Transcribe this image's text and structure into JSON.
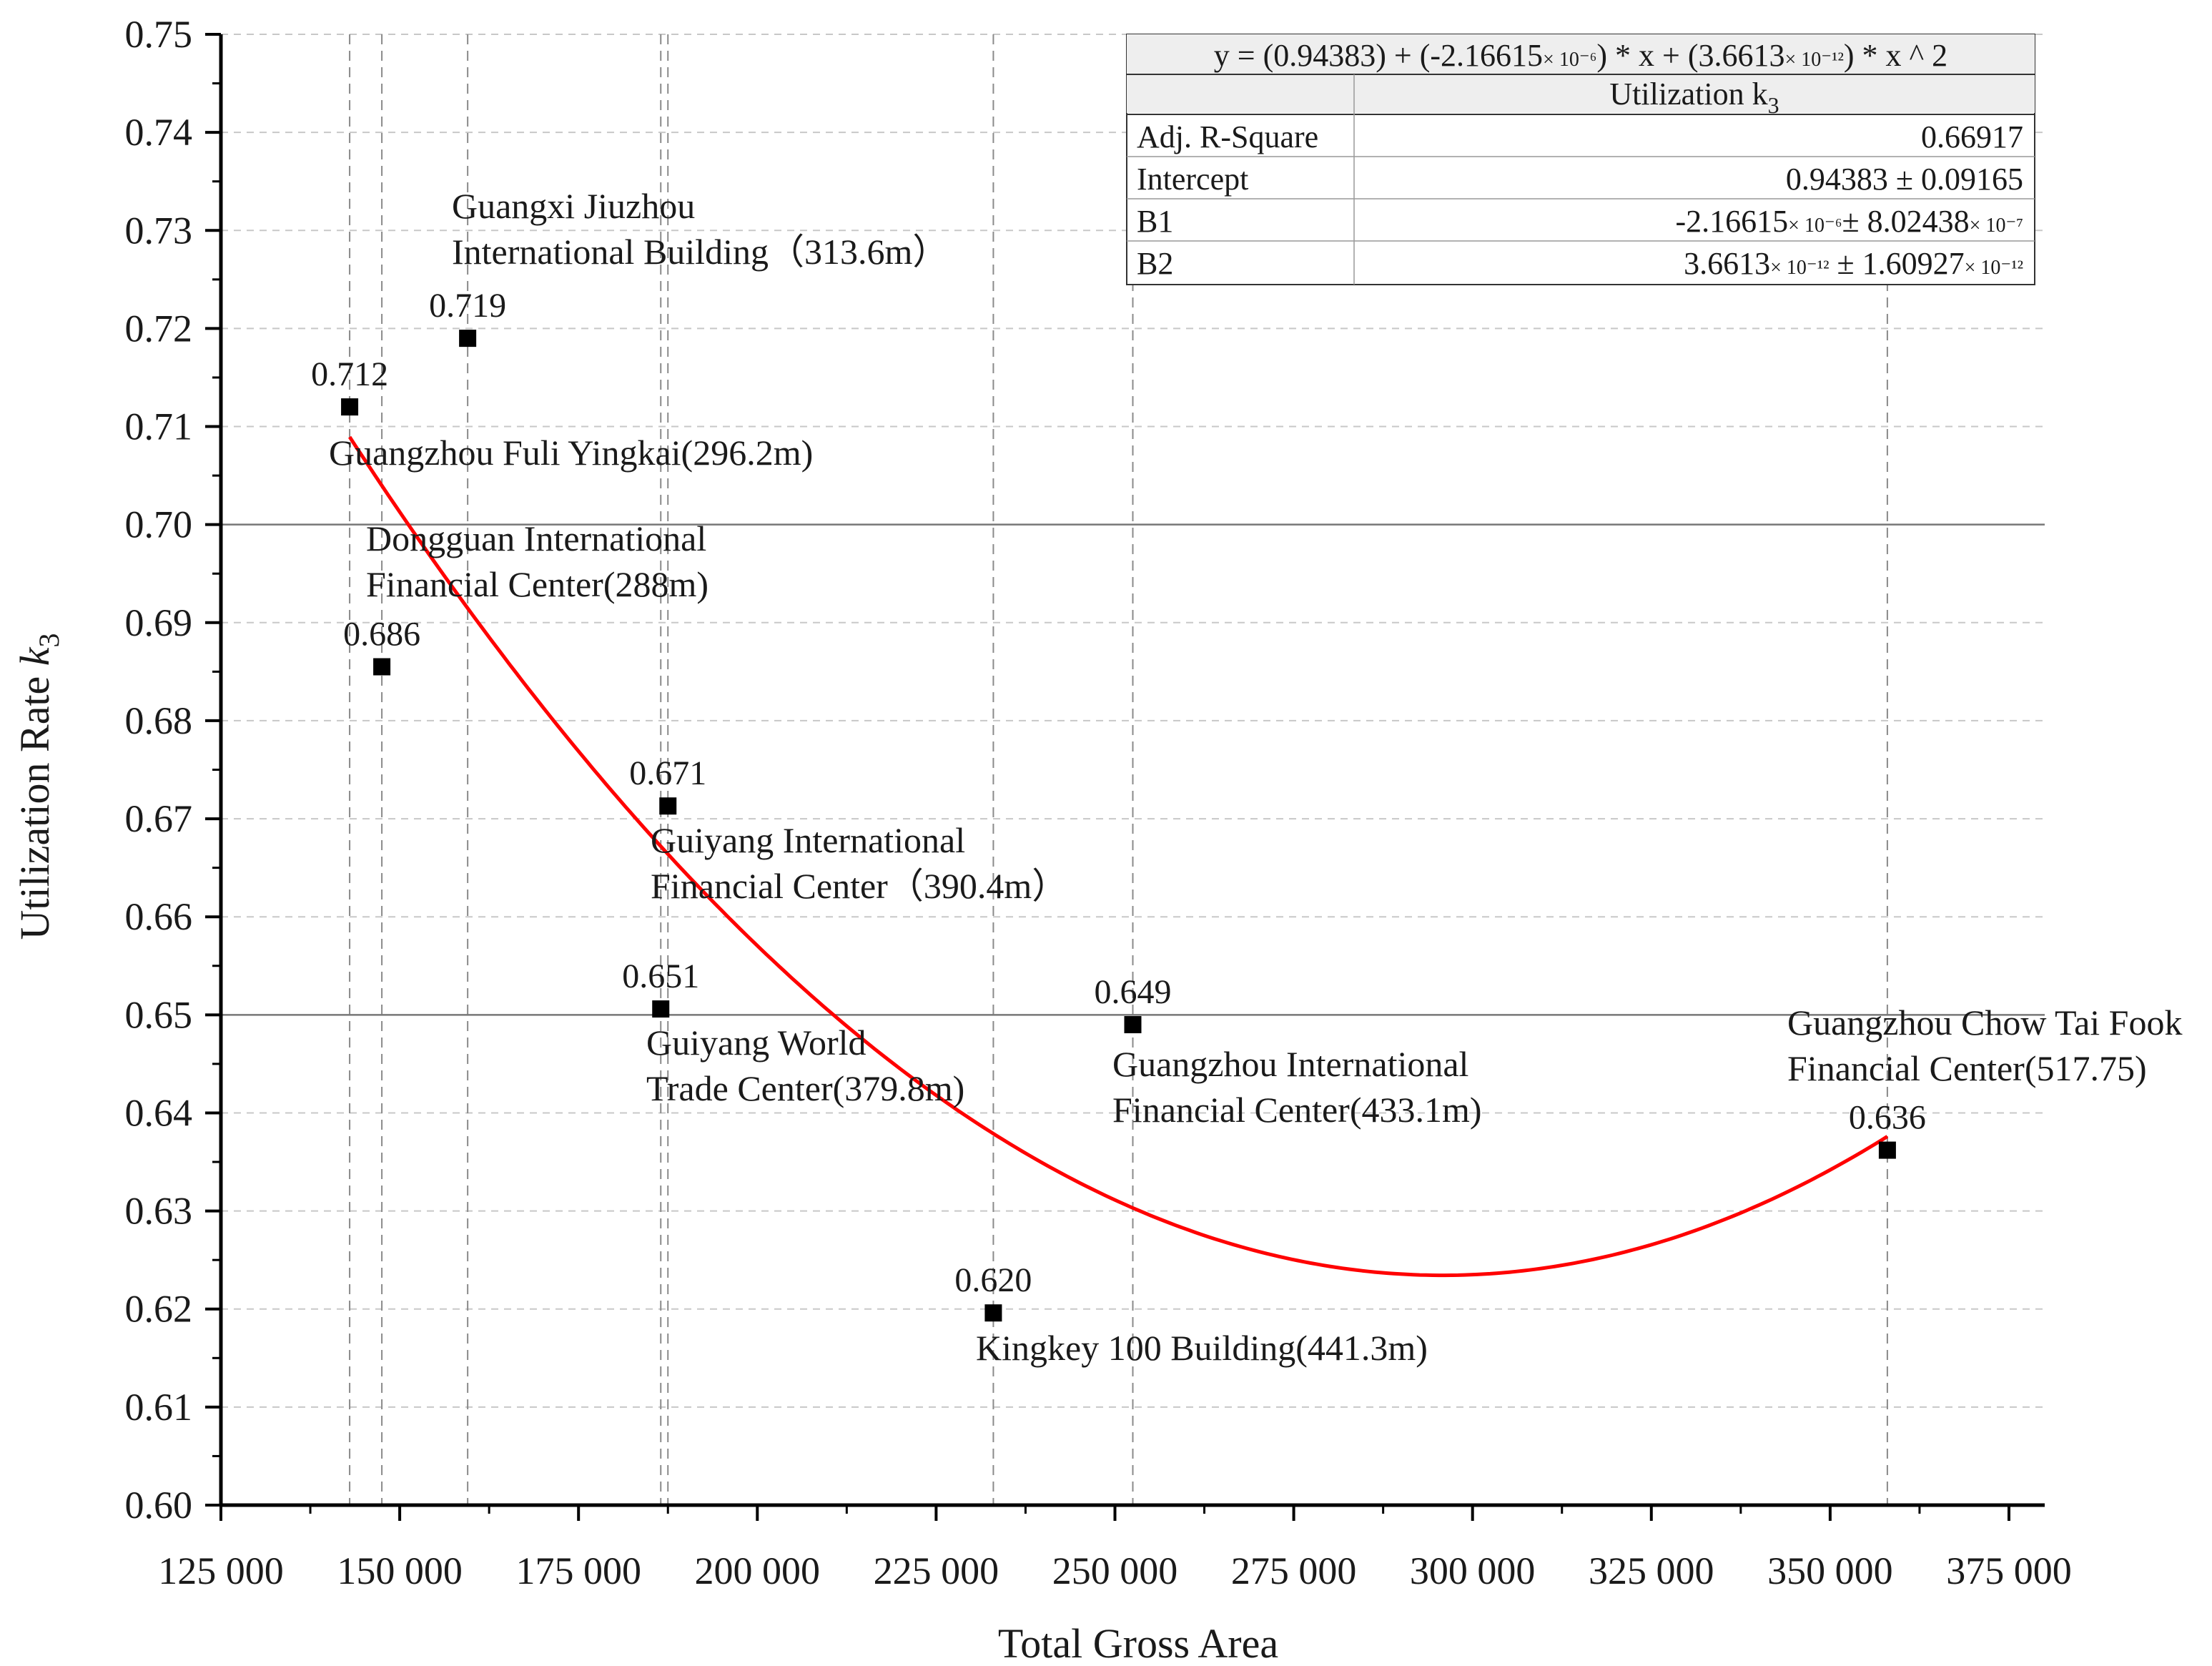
{
  "chart_data": {
    "type": "scatter",
    "xlabel": "Total Gross Area",
    "ylabel": "Utilization Rate ",
    "ylabel_symbol": "k",
    "ylabel_sub": "3",
    "xlim": [
      125000,
      380000
    ],
    "ylim": [
      0.6,
      0.75
    ],
    "x_ticks": [
      125000,
      150000,
      175000,
      200000,
      225000,
      250000,
      275000,
      300000,
      325000,
      350000,
      375000
    ],
    "x_tick_labels": [
      "125 000",
      "150 000",
      "175 000",
      "200 000",
      "225 000",
      "250 000",
      "275 000",
      "300 000",
      "325 000",
      "350 000",
      "375 000"
    ],
    "y_ticks": [
      0.6,
      0.61,
      0.62,
      0.63,
      0.64,
      0.65,
      0.66,
      0.67,
      0.68,
      0.69,
      0.7,
      0.71,
      0.72,
      0.73,
      0.74,
      0.75
    ],
    "y_tick_labels": [
      "0.60",
      "0.61",
      "0.62",
      "0.63",
      "0.64",
      "0.65",
      "0.66",
      "0.67",
      "0.68",
      "0.69",
      "0.70",
      "0.71",
      "0.72",
      "0.73",
      "0.74",
      "0.75"
    ],
    "reference_lines_y": [
      0.65,
      0.7
    ],
    "grid": "dashed",
    "points": [
      {
        "x": 143000,
        "y": 0.712,
        "value_label": "0.712",
        "name_lines": [
          "Guangzhou Fuli Yingkai(296.2m)"
        ]
      },
      {
        "x": 147500,
        "y": 0.6855,
        "value_label": "0.686",
        "name_lines": [
          "Dongguan International",
          "Financial Center(288m)"
        ]
      },
      {
        "x": 159500,
        "y": 0.719,
        "value_label": "0.719",
        "name_lines": [
          "Guangxi Jiuzhou",
          "International Building（313.6m）"
        ]
      },
      {
        "x": 187500,
        "y": 0.6713,
        "value_label": "0.671",
        "name_lines": [
          "Guiyang International",
          "Financial Center（390.4m）"
        ]
      },
      {
        "x": 186500,
        "y": 0.6506,
        "value_label": "0.651",
        "name_lines": [
          "Guiyang World",
          "Trade Center(379.8m)"
        ]
      },
      {
        "x": 233000,
        "y": 0.6196,
        "value_label": "0.620",
        "name_lines": [
          "Kingkey 100 Building(441.3m)"
        ]
      },
      {
        "x": 252500,
        "y": 0.649,
        "value_label": "0.649",
        "name_lines": [
          "Guangzhou International",
          "Financial Center(433.1m)"
        ]
      },
      {
        "x": 358000,
        "y": 0.6362,
        "value_label": "0.636",
        "name_lines": [
          "Guangzhou Chow Tai Fook",
          "Financial Center(517.75)"
        ]
      }
    ],
    "fit": {
      "type": "quadratic",
      "intercept": 0.94383,
      "b1": -2.16615e-06,
      "b2": 3.6613e-12,
      "x_range": [
        143000,
        358000
      ],
      "color": "#ff0000"
    },
    "stats_table": {
      "equation": {
        "p1": "y =  (0.94383) + (-2.16615",
        "s1": "× 10⁻⁶",
        "p2": ") * x + (3.6613",
        "s2": "× 10⁻¹²",
        "p3": ") * x ^ 2"
      },
      "column_header": "Utilization k",
      "column_header_sub": "3",
      "rows": [
        {
          "label": "Adj. R-Square",
          "parts": [
            {
              "t": "0.66917"
            }
          ]
        },
        {
          "label": "Intercept",
          "parts": [
            {
              "t": "0.94383 ± 0.09165"
            }
          ]
        },
        {
          "label": "B1",
          "parts": [
            {
              "t": "-2.16615"
            },
            {
              "t": "× 10⁻⁶",
              "sup": true
            },
            {
              "t": "± 8.02438"
            },
            {
              "t": "× 10⁻⁷",
              "sup": true
            }
          ]
        },
        {
          "label": "B2",
          "parts": [
            {
              "t": "3.6613"
            },
            {
              "t": "× 10⁻¹²",
              "sup": true
            },
            {
              "t": " ± 1.60927"
            },
            {
              "t": "× 10⁻¹²",
              "sup": true
            }
          ]
        }
      ]
    }
  }
}
